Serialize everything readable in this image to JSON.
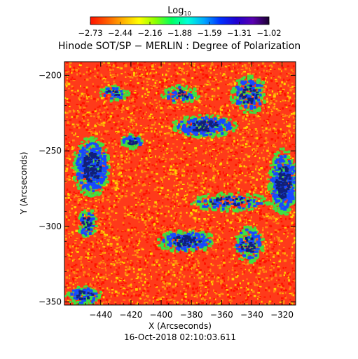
{
  "chart_data": {
    "type": "heatmap",
    "title": "Hinode SOT/SP − MERLIN : Degree of Polarization",
    "xlabel": "X (Arcseconds)",
    "ylabel": "Y (Arcseconds)",
    "footer_timestamp": "16-Oct-2018 02:10:03.611",
    "colorbar": {
      "title_base": "Log",
      "title_sub": "10",
      "tick_labels": [
        "−2.73",
        "−2.44",
        "−2.16",
        "−1.88",
        "−1.59",
        "−1.31",
        "−1.02"
      ],
      "range": [
        -2.73,
        -1.02
      ],
      "colors": [
        "#ff1200",
        "#ff5a00",
        "#ffb000",
        "#ffff00",
        "#8cff00",
        "#00ff60",
        "#00ffd8",
        "#00a8ff",
        "#0030ff",
        "#2000d0",
        "#5a00b0",
        "#1a0030"
      ]
    },
    "x_ticks": [
      -440,
      -420,
      -400,
      -380,
      -360,
      -340,
      -320
    ],
    "y_ticks": [
      -200,
      -250,
      -300,
      -350
    ],
    "x_range": [
      -464,
      -311
    ],
    "y_range": [
      -352,
      -191
    ],
    "field_colors": {
      "background": "#ff3a1a",
      "speckle_hot": "#ff1200",
      "speckle_warm": "#ff8a10",
      "speckle_yellow": "#ffd000",
      "network_green": "#40e040",
      "network_blue": "#1848ff",
      "network_dark": "#10207a"
    },
    "network_patches": [
      {
        "x": -447,
        "y": -260,
        "rx": 10,
        "ry": 16,
        "strength": 1.0
      },
      {
        "x": -372,
        "y": -233,
        "rx": 18,
        "ry": 6,
        "strength": 0.8
      },
      {
        "x": -384,
        "y": -309,
        "rx": 16,
        "ry": 6,
        "strength": 0.8
      },
      {
        "x": -355,
        "y": -283,
        "rx": 22,
        "ry": 5,
        "strength": 0.5
      },
      {
        "x": -343,
        "y": -212,
        "rx": 10,
        "ry": 10,
        "strength": 0.6
      },
      {
        "x": -320,
        "y": -270,
        "rx": 8,
        "ry": 18,
        "strength": 1.0
      },
      {
        "x": -343,
        "y": -311,
        "rx": 8,
        "ry": 10,
        "strength": 0.6
      },
      {
        "x": -420,
        "y": -243,
        "rx": 6,
        "ry": 4,
        "strength": 0.5
      },
      {
        "x": -452,
        "y": -345,
        "rx": 10,
        "ry": 5,
        "strength": 0.6
      },
      {
        "x": -388,
        "y": -212,
        "rx": 10,
        "ry": 5,
        "strength": 0.4
      },
      {
        "x": -432,
        "y": -211,
        "rx": 8,
        "ry": 4,
        "strength": 0.4
      },
      {
        "x": -450,
        "y": -297,
        "rx": 5,
        "ry": 8,
        "strength": 0.5
      }
    ]
  }
}
